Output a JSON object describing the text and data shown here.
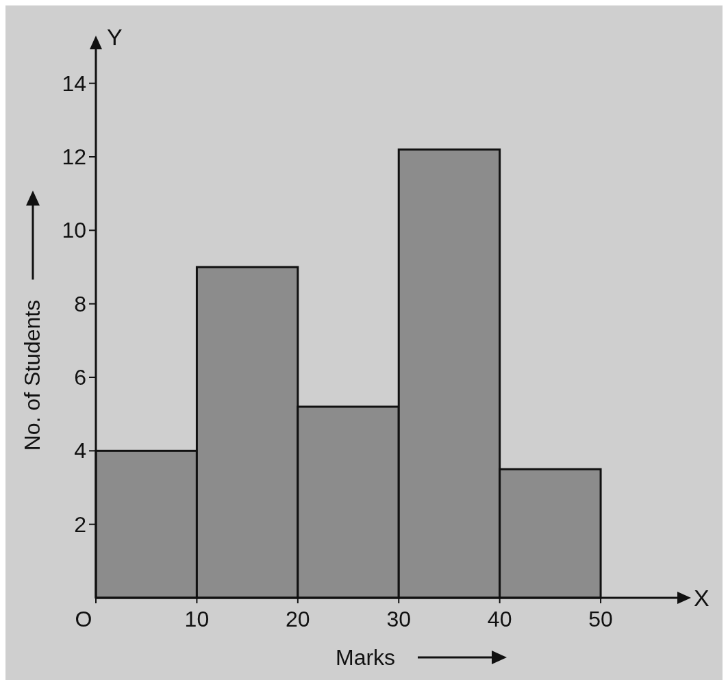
{
  "chart_data": {
    "type": "histogram",
    "xlabel": "Marks",
    "ylabel": "No. of Students",
    "bins": [
      0,
      10,
      20,
      30,
      40,
      50
    ],
    "values": [
      4,
      9,
      5.2,
      12.2,
      3.5
    ],
    "color": "#8c8c8c",
    "xlim": [
      0,
      58
    ],
    "ylim": [
      0,
      15
    ],
    "xticks": [
      {
        "value": 0,
        "label": "O"
      },
      10,
      20,
      30,
      40,
      50
    ],
    "yticks": [
      2,
      4,
      6,
      8,
      10,
      12,
      14
    ],
    "annotations": [
      "Y",
      "X"
    ],
    "grid": false
  }
}
